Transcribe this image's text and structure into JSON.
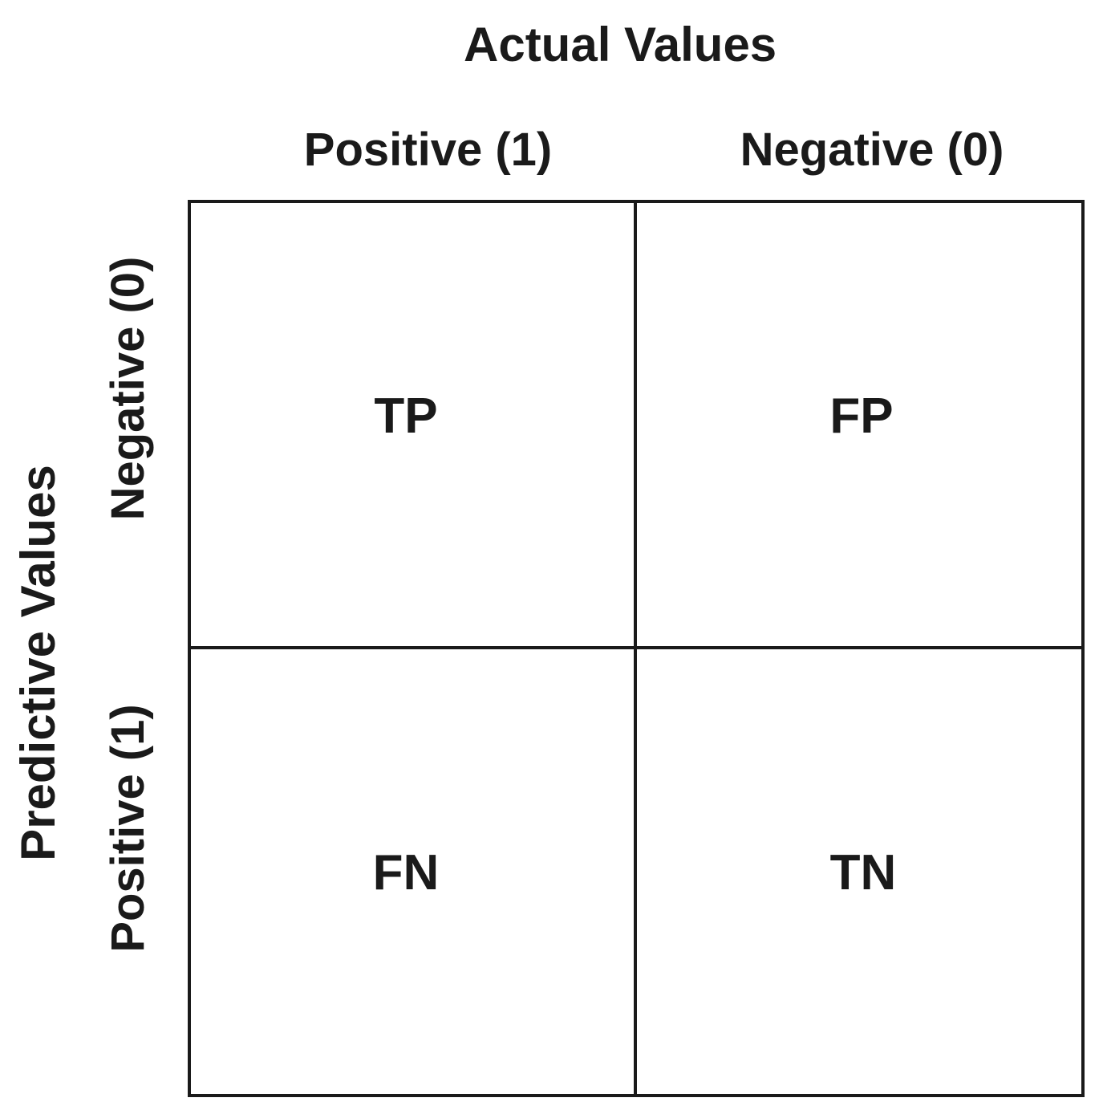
{
  "diagram": {
    "column_axis_title": "Actual Values",
    "row_axis_title": "Predictive Values",
    "column_headers": [
      "Positive (1)",
      "Negative (0)"
    ],
    "row_headers": [
      "Negative (0)",
      "Positive (1)"
    ],
    "cells": [
      [
        "TP",
        "FP"
      ],
      [
        "FN",
        "TN"
      ]
    ],
    "line_color": "#1a1a1a",
    "background": "#ffffff"
  }
}
